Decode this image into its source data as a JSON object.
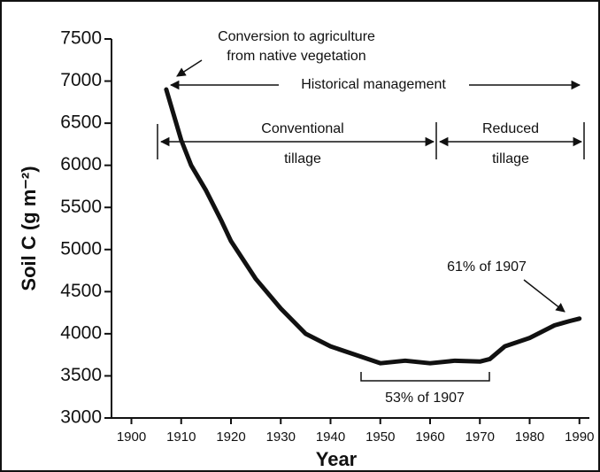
{
  "chart_data": {
    "type": "line",
    "xlabel": "Year",
    "ylabel": "Soil C (g m⁻²)",
    "x": [
      1907,
      1908,
      1910,
      1912,
      1915,
      1918,
      1920,
      1925,
      1930,
      1935,
      1940,
      1945,
      1950,
      1955,
      1960,
      1965,
      1970,
      1972,
      1975,
      1980,
      1985,
      1988,
      1990
    ],
    "series": [
      {
        "color": "#111111",
        "values": [
          6900,
          6700,
          6300,
          6000,
          5700,
          5350,
          5100,
          4650,
          4300,
          4000,
          3850,
          3750,
          3650,
          3680,
          3650,
          3680,
          3670,
          3700,
          3850,
          3950,
          4100,
          4150,
          4180
        ]
      }
    ],
    "xlim": [
      1896,
      1992
    ],
    "xticks": [
      1900,
      1910,
      1920,
      1930,
      1940,
      1950,
      1960,
      1970,
      1980,
      1990
    ],
    "ylim": [
      3000,
      7500
    ],
    "yticks": [
      3000,
      3500,
      4000,
      4500,
      5000,
      5500,
      6000,
      6500,
      7000,
      7500
    ],
    "annotations": [
      "Conversion to agriculture",
      "from native vegetation",
      "Historical management",
      "Conventional",
      "tillage",
      "Reduced",
      "tillage",
      "61% of 1907",
      "53% of 1907"
    ]
  }
}
